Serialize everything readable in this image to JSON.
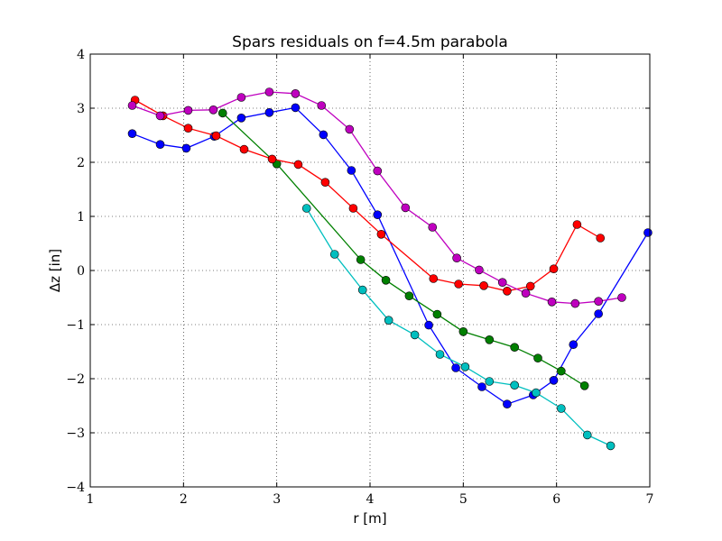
{
  "chart_data": {
    "type": "line",
    "title": "Spars residuals  on f=4.5m parabola",
    "xlabel": "r [m]",
    "ylabel": "Δz [in]",
    "xlim": [
      1,
      7
    ],
    "ylim": [
      -4,
      4
    ],
    "xticks": [
      1,
      2,
      3,
      4,
      5,
      6,
      7
    ],
    "yticks": [
      -4,
      -3,
      -2,
      -1,
      0,
      1,
      2,
      3,
      4
    ],
    "grid": true,
    "series": [
      {
        "color": "#0000ff",
        "points": [
          [
            1.45,
            2.53
          ],
          [
            1.75,
            2.33
          ],
          [
            2.03,
            2.26
          ],
          [
            2.33,
            2.48
          ],
          [
            2.62,
            2.82
          ],
          [
            2.92,
            2.92
          ],
          [
            3.2,
            3.01
          ],
          [
            3.5,
            2.51
          ],
          [
            3.8,
            1.85
          ],
          [
            4.08,
            1.03
          ],
          [
            4.63,
            -1.01
          ],
          [
            4.92,
            -1.8
          ],
          [
            5.2,
            -2.15
          ],
          [
            5.47,
            -2.47
          ],
          [
            5.75,
            -2.3
          ],
          [
            5.97,
            -2.03
          ],
          [
            6.18,
            -1.37
          ],
          [
            6.45,
            -0.8
          ],
          [
            6.98,
            0.7
          ]
        ]
      },
      {
        "color": "#008000",
        "points": [
          [
            2.42,
            2.91
          ],
          [
            3.0,
            1.97
          ],
          [
            3.9,
            0.2
          ],
          [
            4.17,
            -0.18
          ],
          [
            4.42,
            -0.47
          ],
          [
            4.72,
            -0.81
          ],
          [
            5.0,
            -1.13
          ],
          [
            5.28,
            -1.28
          ],
          [
            5.55,
            -1.42
          ],
          [
            5.8,
            -1.62
          ],
          [
            6.05,
            -1.86
          ],
          [
            6.3,
            -2.13
          ]
        ]
      },
      {
        "color": "#ff0000",
        "points": [
          [
            1.48,
            3.15
          ],
          [
            1.78,
            2.86
          ],
          [
            2.05,
            2.63
          ],
          [
            2.35,
            2.49
          ],
          [
            2.65,
            2.24
          ],
          [
            2.95,
            2.06
          ],
          [
            3.23,
            1.96
          ],
          [
            3.52,
            1.63
          ],
          [
            3.82,
            1.15
          ],
          [
            4.12,
            0.67
          ],
          [
            4.68,
            -0.15
          ],
          [
            4.95,
            -0.25
          ],
          [
            5.22,
            -0.28
          ],
          [
            5.47,
            -0.38
          ],
          [
            5.72,
            -0.29
          ],
          [
            5.97,
            0.03
          ],
          [
            6.22,
            0.85
          ],
          [
            6.47,
            0.6
          ]
        ]
      },
      {
        "color": "#00bfbf",
        "points": [
          [
            3.32,
            1.15
          ],
          [
            3.62,
            0.3
          ],
          [
            3.92,
            -0.36
          ],
          [
            4.2,
            -0.92
          ],
          [
            4.48,
            -1.19
          ],
          [
            4.75,
            -1.55
          ],
          [
            5.02,
            -1.78
          ],
          [
            5.28,
            -2.05
          ],
          [
            5.55,
            -2.12
          ],
          [
            5.78,
            -2.26
          ],
          [
            6.05,
            -2.55
          ],
          [
            6.33,
            -3.04
          ],
          [
            6.58,
            -3.24
          ]
        ]
      },
      {
        "color": "#bf00bf",
        "points": [
          [
            1.45,
            3.05
          ],
          [
            1.75,
            2.86
          ],
          [
            2.05,
            2.96
          ],
          [
            2.32,
            2.97
          ],
          [
            2.62,
            3.2
          ],
          [
            2.92,
            3.3
          ],
          [
            3.2,
            3.27
          ],
          [
            3.48,
            3.05
          ],
          [
            3.78,
            2.61
          ],
          [
            4.08,
            1.84
          ],
          [
            4.38,
            1.16
          ],
          [
            4.67,
            0.8
          ],
          [
            4.93,
            0.23
          ],
          [
            5.17,
            0.01
          ],
          [
            5.42,
            -0.22
          ],
          [
            5.67,
            -0.42
          ],
          [
            5.95,
            -0.58
          ],
          [
            6.2,
            -0.61
          ],
          [
            6.45,
            -0.57
          ],
          [
            6.7,
            -0.5
          ]
        ]
      }
    ]
  }
}
